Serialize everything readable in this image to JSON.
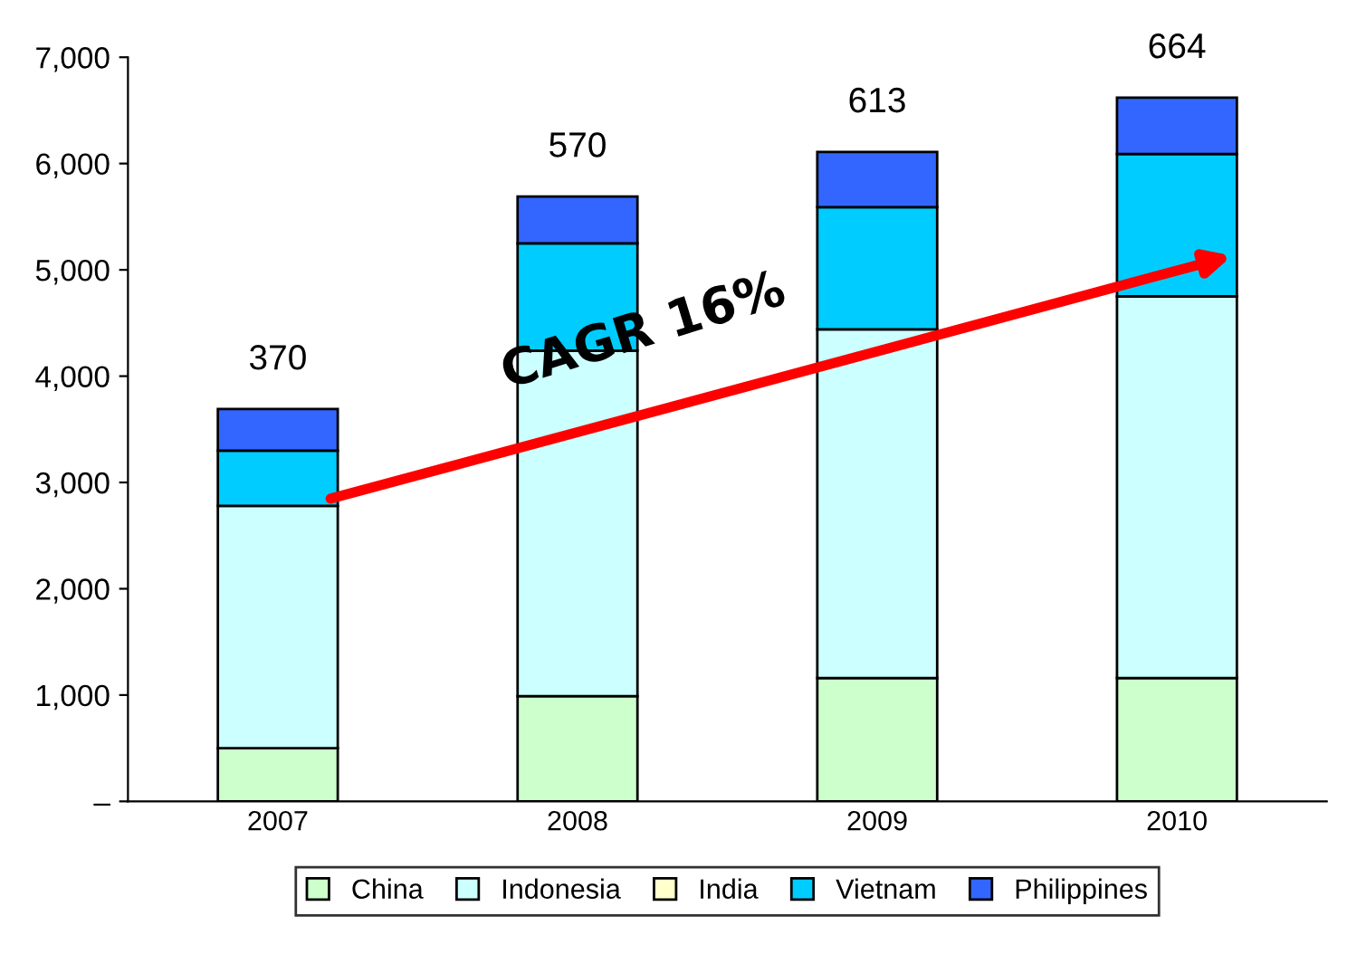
{
  "chart_data": {
    "type": "bar",
    "stacked": true,
    "categories": [
      "2007",
      "2008",
      "2009",
      "2010"
    ],
    "series": [
      {
        "name": "China",
        "color": "#ccffcc",
        "values": [
          500,
          990,
          1160,
          1160
        ]
      },
      {
        "name": "Indonesia",
        "color": "#ccffff",
        "values": [
          2280,
          3250,
          3280,
          3590
        ]
      },
      {
        "name": "India",
        "color": "#ffffcc",
        "values": [
          null,
          null,
          null,
          null
        ]
      },
      {
        "name": "Vietnam",
        "color": "#00ccff",
        "values": [
          520,
          1010,
          1150,
          1340
        ]
      },
      {
        "name": "Philippines",
        "color": "#3366ff",
        "values": [
          390,
          440,
          520,
          530
        ]
      }
    ],
    "ylim": [
      0,
      7000
    ],
    "yticks": [
      {
        "value": 0,
        "label": "–"
      },
      {
        "value": 1000,
        "label": "1,000"
      },
      {
        "value": 2000,
        "label": "2,000"
      },
      {
        "value": 3000,
        "label": "3,000"
      },
      {
        "value": 4000,
        "label": "4,000"
      },
      {
        "value": 5000,
        "label": "5,000"
      },
      {
        "value": 6000,
        "label": "6,000"
      },
      {
        "value": 7000,
        "label": "7,000"
      }
    ],
    "annotations": [
      "CAGR 16%",
      {
        "text": "370",
        "x": "2007",
        "y": 3710
      },
      {
        "text": "570",
        "x": "2008",
        "y": 5710
      },
      {
        "text": "613",
        "x": "2009",
        "y": 6130
      },
      {
        "text": "664",
        "x": "2010",
        "y": 6640
      }
    ],
    "legend": "bottom",
    "grid": false
  }
}
